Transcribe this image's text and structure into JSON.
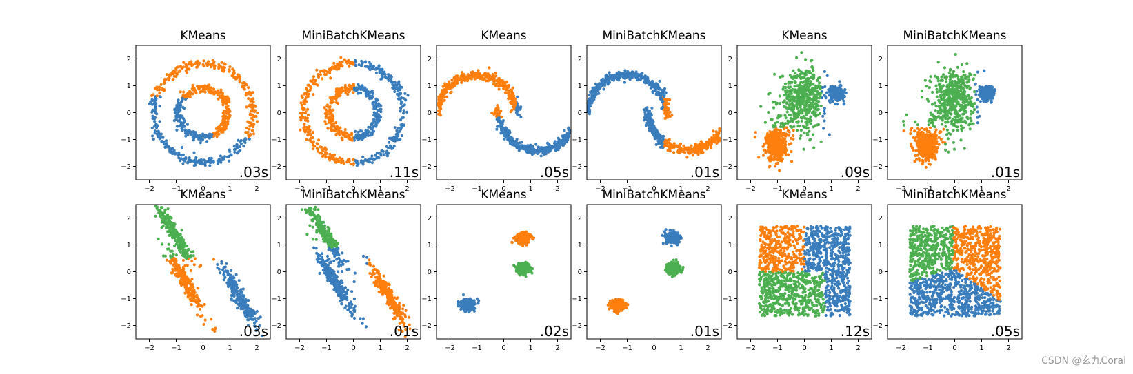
{
  "watermark": "CSDN @玄九Coral",
  "colors": {
    "blue": "#3a7dbd",
    "orange": "#ff7f0e",
    "green": "#4caf50"
  },
  "chart_data": [
    {
      "type": "scatter",
      "title": "KMeans",
      "time_label": ".03s",
      "dataset": "circles",
      "xlim": [
        -2.5,
        2.5
      ],
      "ylim": [
        -2.5,
        2.5
      ],
      "xticks": [
        -2,
        -1,
        0,
        1,
        2
      ],
      "yticks": [
        -2,
        -1,
        0,
        1,
        2
      ],
      "grid": false
    },
    {
      "type": "scatter",
      "title": "MiniBatchKMeans",
      "time_label": ".11s",
      "dataset": "circles",
      "xlim": [
        -2.5,
        2.5
      ],
      "ylim": [
        -2.5,
        2.5
      ],
      "xticks": [
        -2,
        -1,
        0,
        1,
        2
      ],
      "yticks": [
        -2,
        -1,
        0,
        1,
        2
      ],
      "grid": false
    },
    {
      "type": "scatter",
      "title": "KMeans",
      "time_label": ".05s",
      "dataset": "moons",
      "xlim": [
        -2.5,
        2.5
      ],
      "ylim": [
        -2.5,
        2.5
      ],
      "xticks": [
        -2,
        -1,
        0,
        1,
        2
      ],
      "yticks": [
        -2,
        -1,
        0,
        1,
        2
      ],
      "grid": false
    },
    {
      "type": "scatter",
      "title": "MiniBatchKMeans",
      "time_label": ".01s",
      "dataset": "moons",
      "xlim": [
        -2.5,
        2.5
      ],
      "ylim": [
        -2.5,
        2.5
      ],
      "xticks": [
        -2,
        -1,
        0,
        1,
        2
      ],
      "yticks": [
        -2,
        -1,
        0,
        1,
        2
      ],
      "grid": false
    },
    {
      "type": "scatter",
      "title": "KMeans",
      "time_label": ".09s",
      "dataset": "varied",
      "xlim": [
        -2.5,
        2.5
      ],
      "ylim": [
        -2.5,
        2.5
      ],
      "xticks": [
        -2,
        -1,
        0,
        1,
        2
      ],
      "yticks": [
        -2,
        -1,
        0,
        1,
        2
      ],
      "grid": false
    },
    {
      "type": "scatter",
      "title": "MiniBatchKMeans",
      "time_label": ".01s",
      "dataset": "varied",
      "xlim": [
        -2.5,
        2.5
      ],
      "ylim": [
        -2.5,
        2.5
      ],
      "xticks": [
        -2,
        -1,
        0,
        1,
        2
      ],
      "yticks": [
        -2,
        -1,
        0,
        1,
        2
      ],
      "grid": false
    },
    {
      "type": "scatter",
      "title": "KMeans",
      "time_label": ".03s",
      "dataset": "aniso",
      "xlim": [
        -2.5,
        2.5
      ],
      "ylim": [
        -2.5,
        2.5
      ],
      "xticks": [
        -2,
        -1,
        0,
        1,
        2
      ],
      "yticks": [
        -2,
        -1,
        0,
        1,
        2
      ],
      "grid": false
    },
    {
      "type": "scatter",
      "title": "MiniBatchKMeans",
      "time_label": ".01s",
      "dataset": "aniso",
      "xlim": [
        -2.5,
        2.5
      ],
      "ylim": [
        -2.5,
        2.5
      ],
      "xticks": [
        -2,
        -1,
        0,
        1,
        2
      ],
      "yticks": [
        -2,
        -1,
        0,
        1,
        2
      ],
      "grid": false
    },
    {
      "type": "scatter",
      "title": "KMeans",
      "time_label": ".02s",
      "dataset": "blobs",
      "xlim": [
        -2.5,
        2.5
      ],
      "ylim": [
        -2.5,
        2.5
      ],
      "xticks": [
        -2,
        -1,
        0,
        1,
        2
      ],
      "yticks": [
        -2,
        -1,
        0,
        1,
        2
      ],
      "grid": false
    },
    {
      "type": "scatter",
      "title": "MiniBatchKMeans",
      "time_label": ".01s",
      "dataset": "blobs",
      "xlim": [
        -2.5,
        2.5
      ],
      "ylim": [
        -2.5,
        2.5
      ],
      "xticks": [
        -2,
        -1,
        0,
        1,
        2
      ],
      "yticks": [
        -2,
        -1,
        0,
        1,
        2
      ],
      "grid": false
    },
    {
      "type": "scatter",
      "title": "KMeans",
      "time_label": ".12s",
      "dataset": "uniform",
      "xlim": [
        -2.5,
        2.5
      ],
      "ylim": [
        -2.5,
        2.5
      ],
      "xticks": [
        -2,
        -1,
        0,
        1,
        2
      ],
      "yticks": [
        -2,
        -1,
        0,
        1,
        2
      ],
      "grid": false
    },
    {
      "type": "scatter",
      "title": "MiniBatchKMeans",
      "time_label": ".05s",
      "dataset": "uniform",
      "xlim": [
        -2.5,
        2.5
      ],
      "ylim": [
        -2.5,
        2.5
      ],
      "xticks": [
        -2,
        -1,
        0,
        1,
        2
      ],
      "yticks": [
        -2,
        -1,
        0,
        1,
        2
      ],
      "grid": false
    }
  ]
}
